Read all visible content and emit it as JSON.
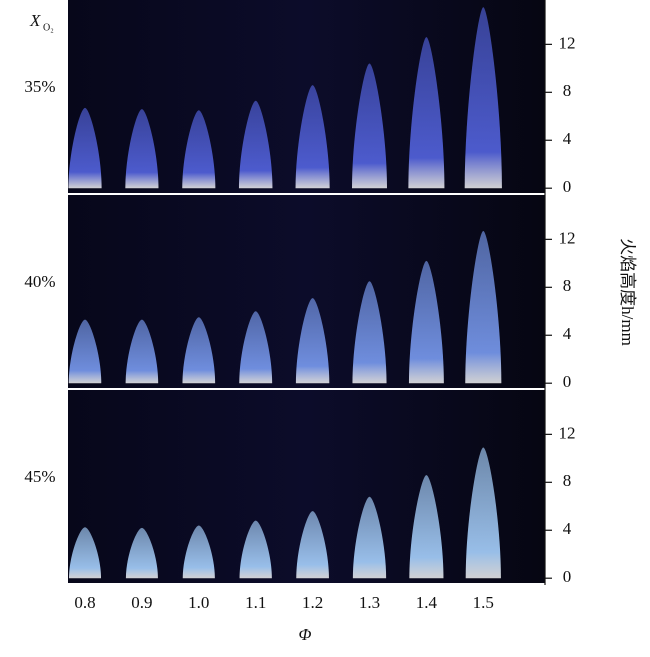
{
  "chart_data": {
    "type": "flame",
    "row_title": "X",
    "row_title_sub": "O₂",
    "xlabel": "Φ",
    "ylabel": "火焰高度h/mm",
    "categories": [
      "0.8",
      "0.9",
      "1.0",
      "1.1",
      "1.2",
      "1.3",
      "1.4",
      "1.5"
    ],
    "series": [
      {
        "name": "35%",
        "color": "#5464e0",
        "values": [
          6.7,
          6.6,
          6.5,
          7.3,
          8.6,
          10.4,
          12.6,
          15.1
        ]
      },
      {
        "name": "40%",
        "color": "#7a9cf2",
        "values": [
          5.3,
          5.3,
          5.5,
          6.0,
          7.1,
          8.5,
          10.2,
          12.7
        ]
      },
      {
        "name": "45%",
        "color": "#a8d2ff",
        "values": [
          4.25,
          4.2,
          4.4,
          4.8,
          5.6,
          6.8,
          8.6,
          10.9
        ]
      }
    ],
    "ylim": [
      -0.4,
      15.7
    ],
    "yticks": [
      0,
      4,
      8,
      12
    ]
  }
}
